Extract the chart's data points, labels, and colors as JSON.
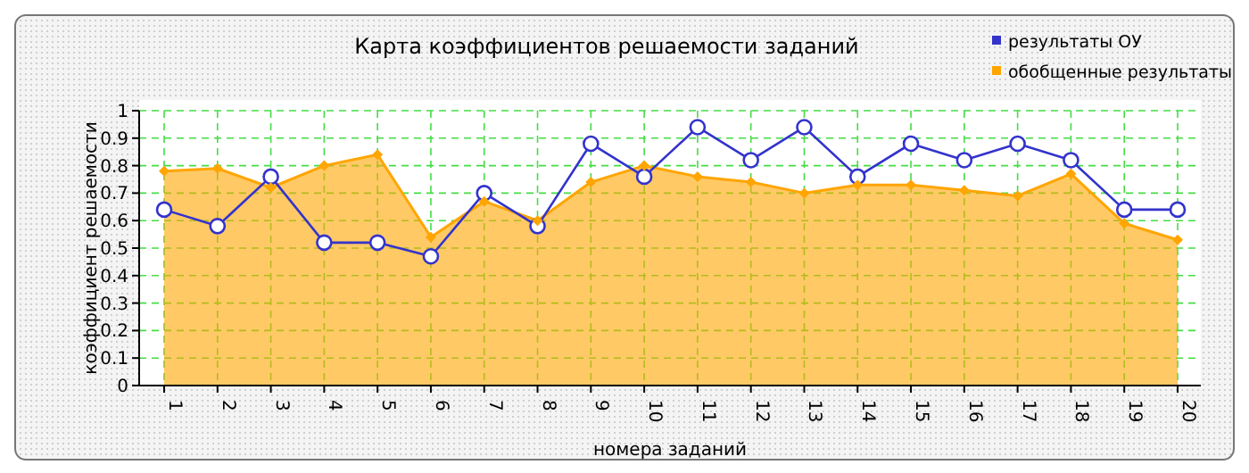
{
  "chart_data": {
    "type": "line",
    "title": "Карта коэффициентов решаемости заданий",
    "xlabel": "номера заданий",
    "ylabel": "коэффициент решаемости",
    "categories": [
      "1",
      "2",
      "3",
      "4",
      "5",
      "6",
      "7",
      "8",
      "9",
      "10",
      "11",
      "12",
      "13",
      "14",
      "15",
      "16",
      "17",
      "18",
      "19",
      "20"
    ],
    "series": [
      {
        "name": "обобщенные результаты",
        "type": "area",
        "color": "#ffa500",
        "marker": "diamond",
        "values": [
          0.78,
          0.79,
          0.72,
          0.8,
          0.84,
          0.54,
          0.67,
          0.6,
          0.74,
          0.8,
          0.76,
          0.74,
          0.7,
          0.73,
          0.73,
          0.71,
          0.69,
          0.77,
          0.59,
          0.53
        ]
      },
      {
        "name": "результаты ОУ",
        "color": "#3333cc",
        "marker": "circle",
        "values": [
          0.64,
          0.58,
          0.76,
          0.52,
          0.52,
          0.47,
          0.7,
          0.58,
          0.88,
          0.76,
          0.94,
          0.82,
          0.94,
          0.76,
          0.88,
          0.82,
          0.88,
          0.82,
          0.64,
          0.64
        ]
      }
    ],
    "ylim": [
      0,
      1
    ],
    "yticks": [
      0,
      0.1,
      0.2,
      0.3,
      0.4,
      0.5,
      0.6,
      0.7,
      0.8,
      0.9,
      1
    ],
    "grid": true,
    "legend": "top right"
  }
}
